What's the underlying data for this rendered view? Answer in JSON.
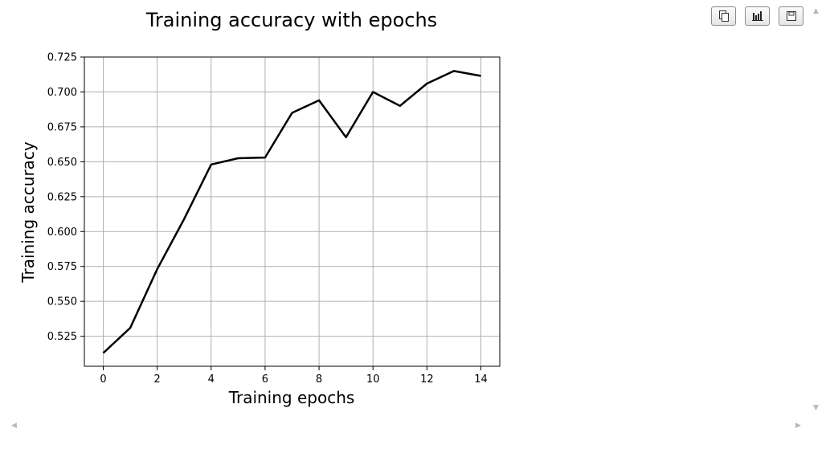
{
  "chart_data": {
    "type": "line",
    "title": "Training accuracy with epochs",
    "xlabel": "Training epochs",
    "ylabel": "Training accuracy",
    "x": [
      0,
      1,
      2,
      3,
      4,
      5,
      6,
      7,
      8,
      9,
      10,
      11,
      12,
      13,
      14
    ],
    "series": [
      {
        "values": [
          0.513,
          0.531,
          0.573,
          0.609,
          0.648,
          0.6525,
          0.653,
          0.685,
          0.694,
          0.6675,
          0.7,
          0.69,
          0.706,
          0.715,
          0.7115
        ],
        "color": "#000000"
      }
    ],
    "xlim": [
      -0.7,
      14.7
    ],
    "ylim": [
      0.5035,
      0.725
    ],
    "xticks": [
      0,
      2,
      4,
      6,
      8,
      10,
      12,
      14
    ],
    "yticks": [
      0.525,
      0.55,
      0.575,
      0.6,
      0.625,
      0.65,
      0.675,
      0.7,
      0.725
    ],
    "xtick_labels": [
      "0",
      "2",
      "4",
      "6",
      "8",
      "10",
      "12",
      "14"
    ],
    "ytick_labels": [
      "0.525",
      "0.550",
      "0.575",
      "0.600",
      "0.625",
      "0.650",
      "0.675",
      "0.700",
      "0.725"
    ],
    "grid": true
  },
  "toolbar": {
    "buttons": [
      {
        "name": "copy-button",
        "icon": "copy-icon"
      },
      {
        "name": "chart-button",
        "icon": "bar-chart-icon"
      },
      {
        "name": "save-button",
        "icon": "save-icon"
      }
    ]
  },
  "colors": {
    "line": "#000000",
    "grid": "#b0b0b0",
    "axes": "#000000",
    "scroll_arrow": "#b8b8b8"
  }
}
